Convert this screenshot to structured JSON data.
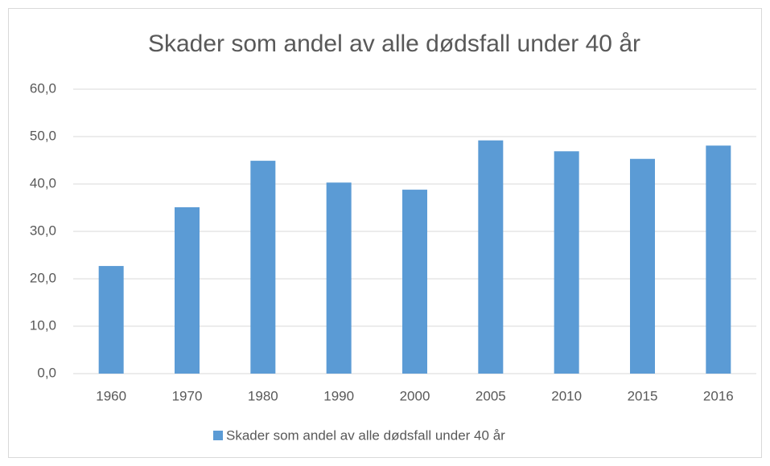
{
  "chart_data": {
    "type": "bar",
    "title": "Skader som andel av alle dødsfall under 40 år",
    "categories": [
      "1960",
      "1970",
      "1980",
      "1990",
      "2000",
      "2005",
      "2010",
      "2015",
      "2016"
    ],
    "series": [
      {
        "name": "Skader som andel av alle dødsfall under 40 år",
        "color": "#5b9bd5",
        "values": [
          22.7,
          35.1,
          44.9,
          40.3,
          38.8,
          49.2,
          46.9,
          45.3,
          48.1
        ]
      }
    ],
    "ylim": [
      0,
      60
    ],
    "yticks": [
      {
        "value": 0,
        "label": "0,0"
      },
      {
        "value": 10,
        "label": "10,0"
      },
      {
        "value": 20,
        "label": "20,0"
      },
      {
        "value": 30,
        "label": "30,0"
      },
      {
        "value": 40,
        "label": "40,0"
      },
      {
        "value": 50,
        "label": "50,0"
      },
      {
        "value": 60,
        "label": "60,0"
      }
    ],
    "grid": true,
    "legend": "bottom"
  }
}
